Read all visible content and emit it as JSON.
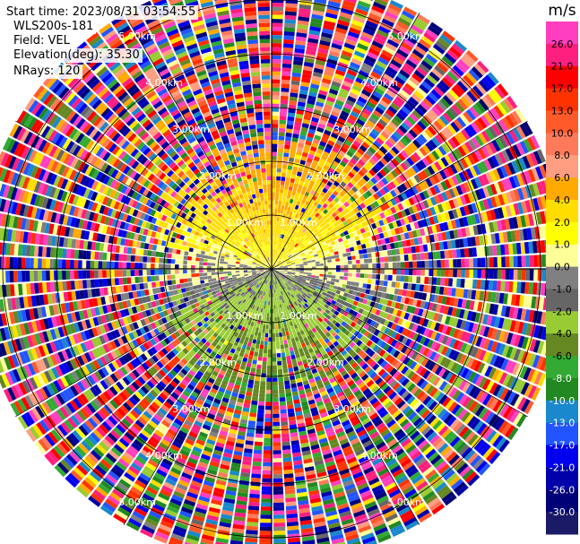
{
  "info": {
    "start_time": "Start time: 2023/08/31 03:54:55",
    "instrument": "WLS200s-181",
    "field": "Field: VEL",
    "elevation": "Elevation(deg): 35.30",
    "nrays": "NRays: 120"
  },
  "chart_data": {
    "type": "heatmap",
    "subtype": "polar-ppi",
    "field": "VEL",
    "nrays": 120,
    "range_rings_km": [
      1.0,
      2.0,
      3.0,
      4.0,
      5.0
    ],
    "range_ring_labels": [
      "1.00km",
      "2.00km",
      "3.00km",
      "4.00km",
      "5.00km"
    ],
    "azimuth_lines_deg": [
      0,
      30,
      60,
      90,
      120,
      150,
      180,
      210,
      240,
      270,
      300,
      330
    ],
    "max_range_km": 5.5,
    "colorbar": {
      "unit": "m/s",
      "ticks": [
        26.0,
        21.0,
        17.0,
        13.0,
        10.0,
        8.0,
        6.0,
        4.0,
        2.0,
        1.0,
        0.0,
        -1.0,
        -2.0,
        -4.0,
        -6.0,
        -8.0,
        -10.0,
        -13.0,
        -17.0,
        -21.0,
        -26.0,
        -30.0
      ],
      "tick_labels": [
        "26.0",
        "21.0",
        "17.0",
        "13.0",
        "10.0",
        "8.0",
        "6.0",
        "4.0",
        "2.0",
        "1.0",
        "0.0",
        "-1.0",
        "-2.0",
        "-4.0",
        "-6.0",
        "-8.0",
        "-10.0",
        "-13.0",
        "-17.0",
        "-21.0",
        "-26.0",
        "-30.0"
      ],
      "colors": [
        "#ff3fbf",
        "#ff1f7f",
        "#ff0000",
        "#ff3300",
        "#ff5a2a",
        "#ff7a5a",
        "#ff9e80",
        "#ffaa00",
        "#ffdd00",
        "#ffff00",
        "#ffff99",
        "#808080",
        "#666666",
        "#99cc33",
        "#668822",
        "#33aa33",
        "#228822",
        "#1a88cc",
        "#2255ff",
        "#0000ee",
        "#0000aa",
        "#000077",
        "#1a1a66"
      ]
    },
    "pattern": {
      "near_range_north": "positive velocities 2 to 6 m/s (yellow/orange)",
      "near_range_south": "negative velocities -1 to -6 m/s (green)",
      "east_west": "near 0 m/s (gray)",
      "far_range": "noisy values spanning full color scale"
    }
  }
}
